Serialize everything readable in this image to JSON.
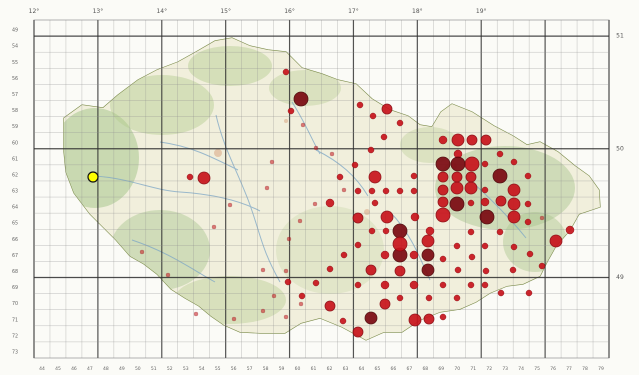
{
  "map": {
    "top_degree_labels": [
      "12°",
      "13°",
      "14°",
      "15°",
      "16°",
      "17°",
      "18°",
      "19°"
    ],
    "right_degree_labels": [
      "51",
      "50",
      "49"
    ],
    "row_labels": [
      "49",
      "54",
      "55",
      "56",
      "57",
      "58",
      "59",
      "60",
      "61",
      "62",
      "63",
      "64",
      "65",
      "66",
      "67",
      "68",
      "69",
      "70",
      "71",
      "72",
      "73"
    ],
    "col_labels": [
      "44",
      "45",
      "46",
      "47",
      "48",
      "49",
      "50",
      "51",
      "52",
      "53",
      "54",
      "55",
      "56",
      "57",
      "58",
      "59",
      "60",
      "61",
      "62",
      "63",
      "64",
      "65",
      "66",
      "67",
      "68",
      "69",
      "70",
      "71",
      "72",
      "73",
      "74",
      "75",
      "76",
      "77",
      "78",
      "79"
    ],
    "colors": {
      "record_fill": "#c8141c",
      "record_dark": "#7b0a12",
      "highlight_fill": "#ffff00",
      "grid_line": "#8f8f8f",
      "grid_major": "#2f2f2f",
      "land": "#f0efdc"
    },
    "record_counts": {
      "dark_large": 11,
      "red_large": 42,
      "red_medium": 38,
      "red_small": 52,
      "yellow_highlight": 1
    }
  }
}
